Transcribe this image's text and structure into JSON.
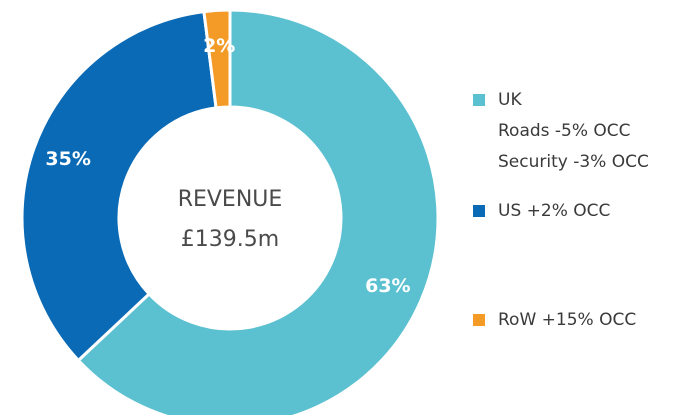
{
  "chart_data": {
    "type": "pie",
    "center_title": "REVENUE",
    "center_value": "£139.5m",
    "categories": [
      "UK",
      "US +2% OCC",
      "RoW +15% OCC"
    ],
    "legend_notes": [
      [
        "Roads -5% OCC",
        "Security -3% OCC"
      ],
      [],
      []
    ],
    "values": [
      63,
      35,
      2
    ],
    "value_labels": [
      "63%",
      "35%",
      "2%"
    ],
    "colors": [
      "#5bc0d0",
      "#0a6ab5",
      "#f39b26"
    ]
  }
}
